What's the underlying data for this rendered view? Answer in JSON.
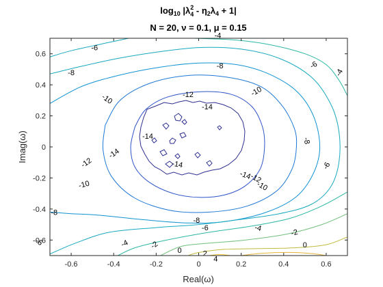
{
  "chart_data": {
    "type": "contour",
    "title": {
      "line1_prefix": "log",
      "line1_prefix_sub": "10",
      "line1_expr_a": " |λ",
      "line1_expr_a_sub": "4",
      "line1_expr_a_sup": "2",
      "line1_expr_b": " - η",
      "line1_expr_b_sub": "2",
      "line1_expr_c": "λ",
      "line1_expr_c_sub": "4",
      "line1_expr_d": " + 1|",
      "line2_a": "N = 20, ",
      "line2_nu": "ν",
      "line2_b": " = 0.1, ",
      "line2_mu": "μ",
      "line2_c": " = 0.15"
    },
    "xlabel": {
      "text": "Real(",
      "sym": "ω",
      "close": ")"
    },
    "ylabel": {
      "text": "Imag(",
      "sym": "ω",
      "close": ")"
    },
    "xlim": [
      -0.7,
      0.7
    ],
    "ylim": [
      -0.7,
      0.7
    ],
    "xticks": [
      -0.6,
      -0.4,
      -0.2,
      0,
      0.2,
      0.4,
      0.6
    ],
    "xtick_labels": [
      "-0.6",
      "-0.4",
      "-0.2",
      "0",
      "0.2",
      "0.4",
      "0.6"
    ],
    "yticks": [
      -0.6,
      -0.4,
      -0.2,
      0,
      0.2,
      0.4,
      0.6
    ],
    "ytick_labels": [
      "-0.6",
      "-0.4",
      "-0.2",
      "0",
      "0.2",
      "0.4",
      "0.6"
    ],
    "grid": false,
    "levels": [
      -14,
      -12,
      -10,
      -8,
      -6,
      -4,
      -2,
      0,
      2,
      4
    ],
    "level_colors": {
      "-14": "#2c2e8f",
      "-12": "#2c52c8",
      "-10": "#1c76d6",
      "-8": "#0f92d2",
      "-6": "#17a8bf",
      "-4": "#2ab7a4",
      "-2": "#70bf7a",
      "0": "#c0bb3c",
      "2": "#e3b53c",
      "4": "#f5c831"
    },
    "contour_lines": [
      {
        "level": -12,
        "points": [
          [
            -0.3,
            0.13
          ],
          [
            -0.25,
            0.24
          ],
          [
            -0.15,
            0.32
          ],
          [
            0,
            0.355
          ],
          [
            0.15,
            0.34
          ],
          [
            0.25,
            0.26
          ],
          [
            0.3,
            0.13
          ],
          [
            0.31,
            0
          ],
          [
            0.29,
            -0.14
          ],
          [
            0.22,
            -0.25
          ],
          [
            0.12,
            -0.31
          ],
          [
            0,
            -0.325
          ],
          [
            -0.12,
            -0.3
          ],
          [
            -0.23,
            -0.23
          ],
          [
            -0.3,
            -0.13
          ],
          [
            -0.32,
            0
          ],
          [
            -0.3,
            0.13
          ]
        ]
      },
      {
        "level": -10,
        "points": [
          [
            -0.44,
            0.14
          ],
          [
            -0.37,
            0.3
          ],
          [
            -0.23,
            0.41
          ],
          [
            -0.05,
            0.46
          ],
          [
            0.13,
            0.45
          ],
          [
            0.29,
            0.39
          ],
          [
            0.39,
            0.27
          ],
          [
            0.45,
            0.12
          ],
          [
            0.46,
            0
          ],
          [
            0.44,
            -0.14
          ],
          [
            0.37,
            -0.28
          ],
          [
            0.23,
            -0.38
          ],
          [
            0.05,
            -0.42
          ],
          [
            -0.13,
            -0.41
          ],
          [
            -0.3,
            -0.33
          ],
          [
            -0.41,
            -0.19
          ],
          [
            -0.45,
            -0.02
          ],
          [
            -0.44,
            0.14
          ]
        ]
      },
      {
        "level": -8,
        "points": [
          [
            -0.7,
            0.28
          ],
          [
            -0.55,
            0.39
          ],
          [
            -0.38,
            0.46
          ],
          [
            -0.2,
            0.51
          ],
          [
            0,
            0.54
          ],
          [
            0.18,
            0.53
          ],
          [
            0.33,
            0.47
          ],
          [
            0.46,
            0.36
          ],
          [
            0.54,
            0.2
          ],
          [
            0.57,
            0
          ],
          [
            0.54,
            -0.17
          ],
          [
            0.46,
            -0.32
          ],
          [
            0.32,
            -0.42
          ],
          [
            0.13,
            -0.48
          ],
          [
            -0.05,
            -0.49
          ],
          [
            -0.25,
            -0.47
          ],
          [
            -0.47,
            -0.44
          ],
          [
            -0.6,
            -0.43
          ],
          [
            -0.7,
            -0.42
          ]
        ]
      },
      {
        "level": -6,
        "points": [
          [
            -0.7,
            0.47
          ],
          [
            -0.55,
            0.52
          ],
          [
            -0.38,
            0.57
          ],
          [
            -0.2,
            0.61
          ],
          [
            0,
            0.64
          ],
          [
            0.2,
            0.63
          ],
          [
            0.38,
            0.57
          ],
          [
            0.53,
            0.45
          ],
          [
            0.62,
            0.28
          ],
          [
            0.66,
            0.1
          ],
          [
            0.66,
            -0.1
          ],
          [
            0.62,
            -0.26
          ],
          [
            0.53,
            -0.37
          ],
          [
            0.38,
            -0.43
          ],
          [
            0.18,
            -0.47
          ],
          [
            0,
            -0.5
          ],
          [
            -0.2,
            -0.52
          ],
          [
            -0.42,
            -0.55
          ],
          [
            -0.58,
            -0.62
          ],
          [
            -0.7,
            -0.69
          ]
        ]
      },
      {
        "level": -6,
        "points": [
          [
            -0.7,
            0.58
          ],
          [
            -0.6,
            0.62
          ],
          [
            -0.45,
            0.665
          ],
          [
            -0.33,
            0.7
          ]
        ]
      },
      {
        "level": -4,
        "points": [
          [
            -0.02,
            0.7
          ],
          [
            0.16,
            0.69
          ],
          [
            0.33,
            0.66
          ],
          [
            0.5,
            0.6
          ],
          [
            0.6,
            0.53
          ],
          [
            0.66,
            0.43
          ],
          [
            0.7,
            0.33
          ]
        ]
      },
      {
        "level": -4,
        "points": [
          [
            0.7,
            -0.29
          ],
          [
            0.58,
            -0.38
          ],
          [
            0.43,
            -0.46
          ],
          [
            0.25,
            -0.51
          ],
          [
            0.05,
            -0.55
          ],
          [
            -0.15,
            -0.6
          ],
          [
            -0.3,
            -0.65
          ],
          [
            -0.38,
            -0.7
          ]
        ]
      },
      {
        "level": -2,
        "points": [
          [
            0.7,
            -0.43
          ],
          [
            0.58,
            -0.5
          ],
          [
            0.42,
            -0.56
          ],
          [
            0.22,
            -0.6
          ],
          [
            0.05,
            -0.62
          ],
          [
            -0.08,
            -0.64
          ],
          [
            -0.18,
            -0.7
          ]
        ]
      },
      {
        "level": 0,
        "points": [
          [
            0.7,
            -0.58
          ],
          [
            0.6,
            -0.63
          ],
          [
            0.45,
            -0.65
          ],
          [
            0.28,
            -0.655
          ],
          [
            0.12,
            -0.66
          ],
          [
            0,
            -0.68
          ],
          [
            -0.05,
            -0.7
          ]
        ]
      },
      {
        "level": 2,
        "points": [
          [
            0.2,
            -0.7
          ],
          [
            0.3,
            -0.685
          ],
          [
            0.45,
            -0.68
          ],
          [
            0.55,
            -0.69
          ],
          [
            0.6,
            -0.7
          ]
        ]
      },
      {
        "level": 4,
        "points": [
          [
            0.05,
            -0.7
          ],
          [
            0.1,
            -0.693
          ],
          [
            0.15,
            -0.7
          ]
        ]
      }
    ],
    "contour_labels": [
      {
        "text": "-6",
        "x": -0.49,
        "y": 0.64,
        "angle": 0
      },
      {
        "text": "-4",
        "x": 0.09,
        "y": 0.72,
        "angle": 0
      },
      {
        "text": "-8",
        "x": -0.6,
        "y": 0.48,
        "angle": 0
      },
      {
        "text": "-8",
        "x": 0.1,
        "y": 0.525,
        "angle": 0
      },
      {
        "text": "-6",
        "x": 0.54,
        "y": 0.53,
        "angle": 30
      },
      {
        "text": "-4",
        "x": 0.66,
        "y": 0.48,
        "angle": 60
      },
      {
        "text": "-10",
        "x": -0.43,
        "y": 0.31,
        "angle": -35
      },
      {
        "text": "-10",
        "x": 0.27,
        "y": 0.36,
        "angle": 30
      },
      {
        "text": "-12",
        "x": -0.05,
        "y": 0.34,
        "angle": 0
      },
      {
        "text": "-14",
        "x": 0.04,
        "y": 0.26,
        "angle": 0
      },
      {
        "text": "-14",
        "x": -0.24,
        "y": 0.07,
        "angle": 0
      },
      {
        "text": "-14",
        "x": -0.4,
        "y": -0.04,
        "angle": 35
      },
      {
        "text": "-14",
        "x": -0.1,
        "y": -0.11,
        "angle": -10
      },
      {
        "text": "-12",
        "x": -0.53,
        "y": -0.1,
        "angle": 35
      },
      {
        "text": "-14",
        "x": 0.22,
        "y": -0.18,
        "angle": -20
      },
      {
        "text": "-12",
        "x": 0.27,
        "y": -0.2,
        "angle": -30
      },
      {
        "text": "-10",
        "x": 0.3,
        "y": -0.25,
        "angle": -30
      },
      {
        "text": "-10",
        "x": -0.54,
        "y": -0.24,
        "angle": 15
      },
      {
        "text": "-8",
        "x": 0.51,
        "y": 0.04,
        "angle": -80
      },
      {
        "text": "-6",
        "x": 0.6,
        "y": -0.12,
        "angle": 60
      },
      {
        "text": "-8",
        "x": -0.68,
        "y": -0.42,
        "angle": 0
      },
      {
        "text": "-8",
        "x": -0.01,
        "y": -0.47,
        "angle": 0
      },
      {
        "text": "-6",
        "x": -0.75,
        "y": -0.61,
        "angle": -35
      },
      {
        "text": "-6",
        "x": 0.03,
        "y": -0.52,
        "angle": 0
      },
      {
        "text": "-4",
        "x": 0.28,
        "y": -0.52,
        "angle": -15
      },
      {
        "text": "-4",
        "x": -0.35,
        "y": -0.62,
        "angle": 25
      },
      {
        "text": "-2",
        "x": 0.45,
        "y": -0.55,
        "angle": 15
      },
      {
        "text": "-2",
        "x": -0.21,
        "y": -0.63,
        "angle": 35
      },
      {
        "text": "0",
        "x": 0.5,
        "y": -0.63,
        "angle": 0
      },
      {
        "text": "0",
        "x": -0.09,
        "y": -0.665,
        "angle": 0
      },
      {
        "text": "2",
        "x": 0.03,
        "y": -0.685,
        "angle": 0
      },
      {
        "text": "4",
        "x": 0.08,
        "y": -0.72,
        "angle": 0
      }
    ]
  }
}
